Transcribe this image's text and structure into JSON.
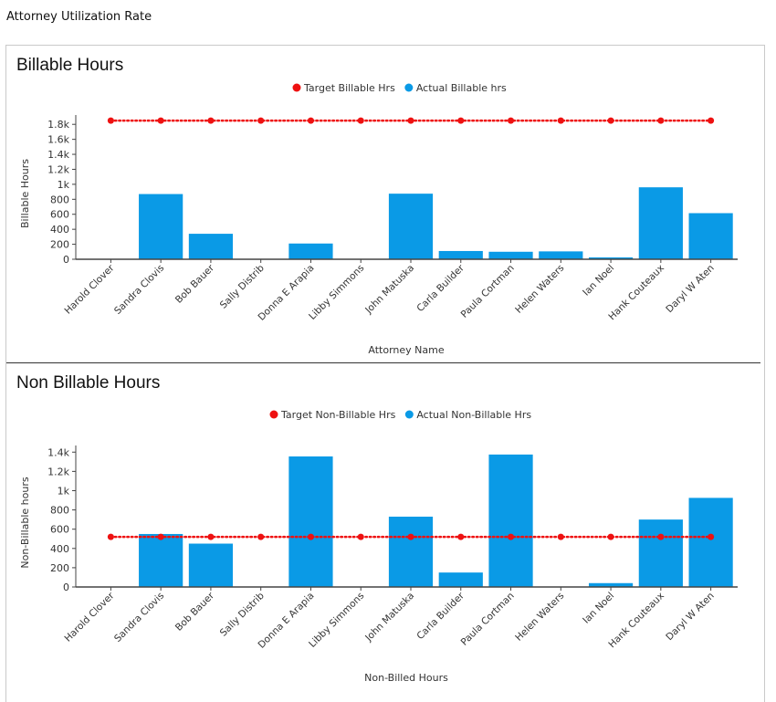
{
  "page": {
    "title": "Attorney Utilization Rate"
  },
  "colors": {
    "actual": "#0a9ae6",
    "target": "#ee1111",
    "axis": "#444444",
    "text": "#333333"
  },
  "chart_data": [
    {
      "type": "bar",
      "title": "Billable Hours",
      "xlabel": "Attorney Name",
      "ylabel": "Billable Hours",
      "categories": [
        "Harold Clover",
        "Sandra Clovis",
        "Bob Bauer",
        "Sally Distrib",
        "Donna E Arapia",
        "Libby Simmons",
        "John Matuska",
        "Carla Builder",
        "Paula Cortman",
        "Helen Waters",
        "Ian Noel",
        "Hank Couteaux",
        "Daryl W Aten"
      ],
      "series": [
        {
          "name": "Target Billable Hrs",
          "type": "line",
          "values": [
            1850,
            1850,
            1850,
            1850,
            1850,
            1850,
            1850,
            1850,
            1850,
            1850,
            1850,
            1850,
            1850
          ]
        },
        {
          "name": "Actual Billable hrs",
          "type": "bar",
          "values": [
            0,
            870,
            340,
            0,
            210,
            0,
            875,
            110,
            100,
            105,
            25,
            960,
            615
          ]
        }
      ],
      "ylim": [
        0,
        1900
      ],
      "yticks": [
        0,
        200,
        400,
        600,
        800,
        1000,
        1200,
        1400,
        1600,
        1800
      ],
      "ytick_labels": [
        "0",
        "200",
        "400",
        "600",
        "800",
        "1k",
        "1.2k",
        "1.4k",
        "1.6k",
        "1.8k"
      ],
      "legend": "top-center",
      "grid": false
    },
    {
      "type": "bar",
      "title": "Non Billable Hours",
      "xlabel": "Non-Billed Hours",
      "ylabel": "Non-Billable hours",
      "categories": [
        "Harold Clover",
        "Sandra Clovis",
        "Bob Bauer",
        "Sally Distrib",
        "Donna E Arapia",
        "Libby Simmons",
        "John Matuska",
        "Carla Builder",
        "Paula Cortman",
        "Helen Waters",
        "Ian Noel",
        "Hank Couteaux",
        "Daryl W Aten"
      ],
      "series": [
        {
          "name": "Target Non-Billable Hrs",
          "type": "line",
          "values": [
            520,
            520,
            520,
            520,
            520,
            520,
            520,
            520,
            520,
            520,
            520,
            520,
            520
          ]
        },
        {
          "name": "Actual Non-Billable Hrs",
          "type": "bar",
          "values": [
            0,
            550,
            450,
            0,
            1355,
            0,
            730,
            150,
            1375,
            0,
            40,
            700,
            925
          ]
        }
      ],
      "ylim": [
        0,
        1450
      ],
      "yticks": [
        0,
        200,
        400,
        600,
        800,
        1000,
        1200,
        1400
      ],
      "ytick_labels": [
        "0",
        "200",
        "400",
        "600",
        "800",
        "1k",
        "1.2k",
        "1.4k"
      ],
      "legend": "top-center",
      "grid": false
    }
  ]
}
